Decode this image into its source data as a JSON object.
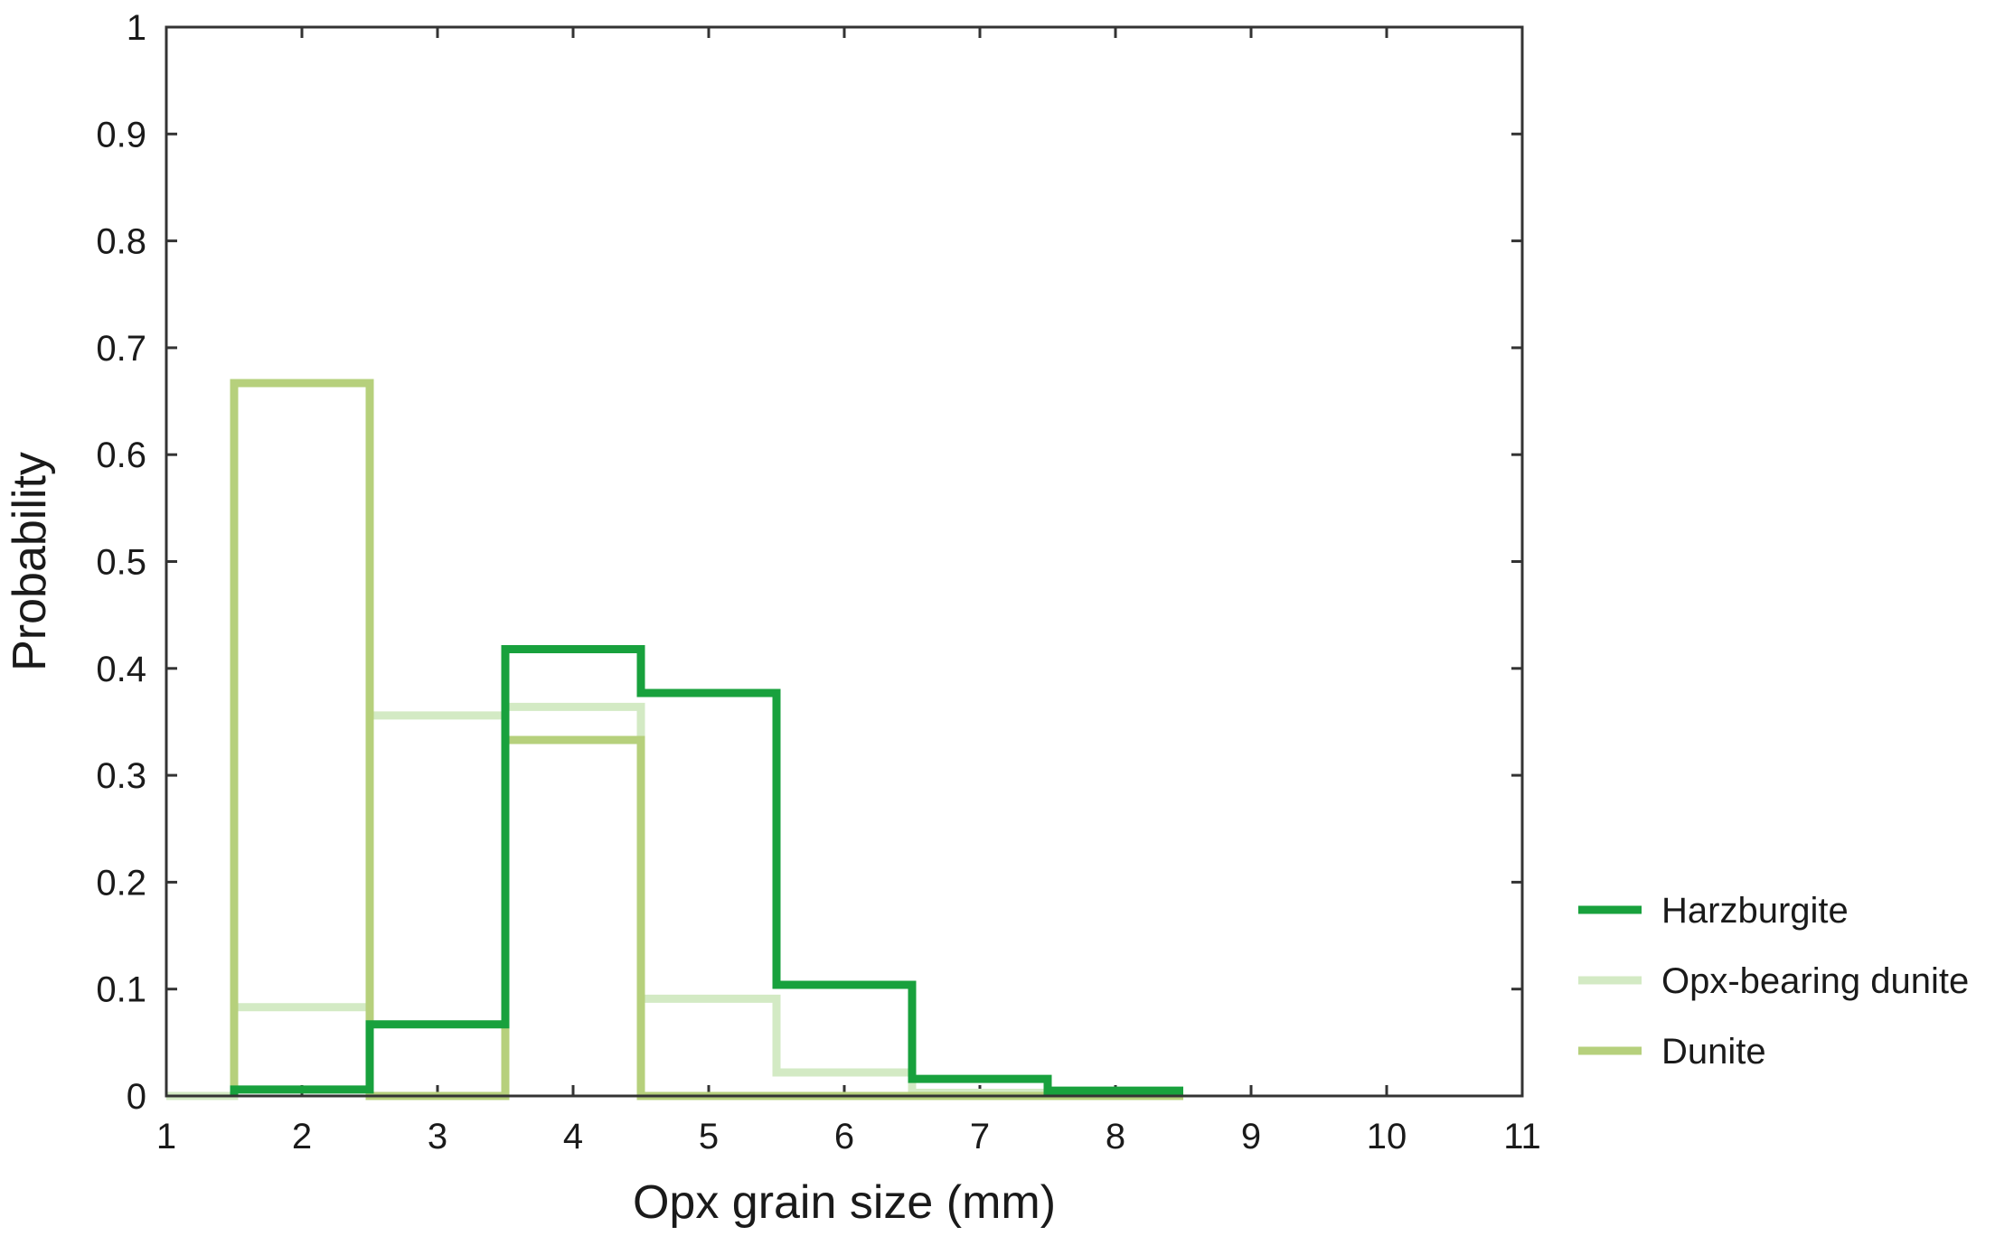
{
  "chart_data": {
    "type": "line",
    "style": "step histogram",
    "title": "",
    "xlabel": "Opx grain size (mm)",
    "ylabel": "Probability",
    "xlim": [
      1,
      11
    ],
    "ylim": [
      0,
      1
    ],
    "x_ticks": [
      1,
      2,
      3,
      4,
      5,
      6,
      7,
      8,
      9,
      10,
      11
    ],
    "x_tick_labels": [
      "1",
      "2",
      "3",
      "4",
      "5",
      "6",
      "7",
      "8",
      "9",
      "10",
      "11"
    ],
    "y_ticks": [
      0,
      0.1,
      0.2,
      0.3,
      0.4,
      0.5,
      0.6,
      0.7,
      0.8,
      0.9,
      1
    ],
    "y_tick_labels": [
      "0",
      "0.1",
      "0.2",
      "0.3",
      "0.4",
      "0.5",
      "0.6",
      "0.7",
      "0.8",
      "0.9",
      "1"
    ],
    "grid": false,
    "legend_position": "right-bottom, outside plot",
    "bin_edges": [
      1.5,
      2.5,
      3.5,
      4.5,
      5.5,
      6.5,
      7.5,
      8.5
    ],
    "series": [
      {
        "name": "Opx-bearing dunite",
        "color": "#d3eac4",
        "lead_in_from": 1,
        "values": [
          0.083,
          0.356,
          0.364,
          0.091,
          0.022,
          0.003,
          0.001
        ]
      },
      {
        "name": "Dunite",
        "color": "#b6d07c",
        "lead_in_from": null,
        "values": [
          0.667,
          0,
          0.333,
          0,
          0,
          0,
          0
        ]
      },
      {
        "name": "Harzburgite",
        "color": "#18a13d",
        "lead_in_from": null,
        "values": [
          0.006,
          0.067,
          0.418,
          0.377,
          0.104,
          0.016,
          0.005
        ]
      }
    ],
    "legend": [
      {
        "label": "Harzburgite",
        "color": "#18a13d"
      },
      {
        "label": "Opx-bearing dunite",
        "color": "#d3eac4"
      },
      {
        "label": "Dunite",
        "color": "#b6d07c"
      }
    ]
  }
}
